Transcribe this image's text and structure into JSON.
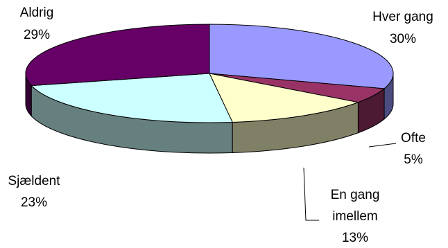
{
  "chart_data": {
    "type": "pie",
    "style": "3d-exploded",
    "title": "",
    "legend": "none",
    "slices": [
      {
        "label_lines": [
          "Hver gang"
        ],
        "label": "Hver gang",
        "percent_label": "30%",
        "value": 30,
        "color": "#9999FF",
        "side_color": "#4C4C80"
      },
      {
        "label_lines": [
          "Ofte"
        ],
        "label": "Ofte",
        "percent_label": "5%",
        "value": 5,
        "color": "#993366",
        "side_color": "#4C1A33"
      },
      {
        "label_lines": [
          "En gang",
          "imellem"
        ],
        "label": "En gang imellem",
        "percent_label": "13%",
        "value": 13,
        "color": "#FFFFCC",
        "side_color": "#808066"
      },
      {
        "label_lines": [
          "Sjældent"
        ],
        "label": "Sjældent",
        "percent_label": "23%",
        "value": 23,
        "color": "#CCFFFF",
        "side_color": "#668080"
      },
      {
        "label_lines": [
          "Aldrig"
        ],
        "label": "Aldrig",
        "percent_label": "29%",
        "value": 29,
        "color": "#660066",
        "side_color": "#330033"
      }
    ]
  }
}
